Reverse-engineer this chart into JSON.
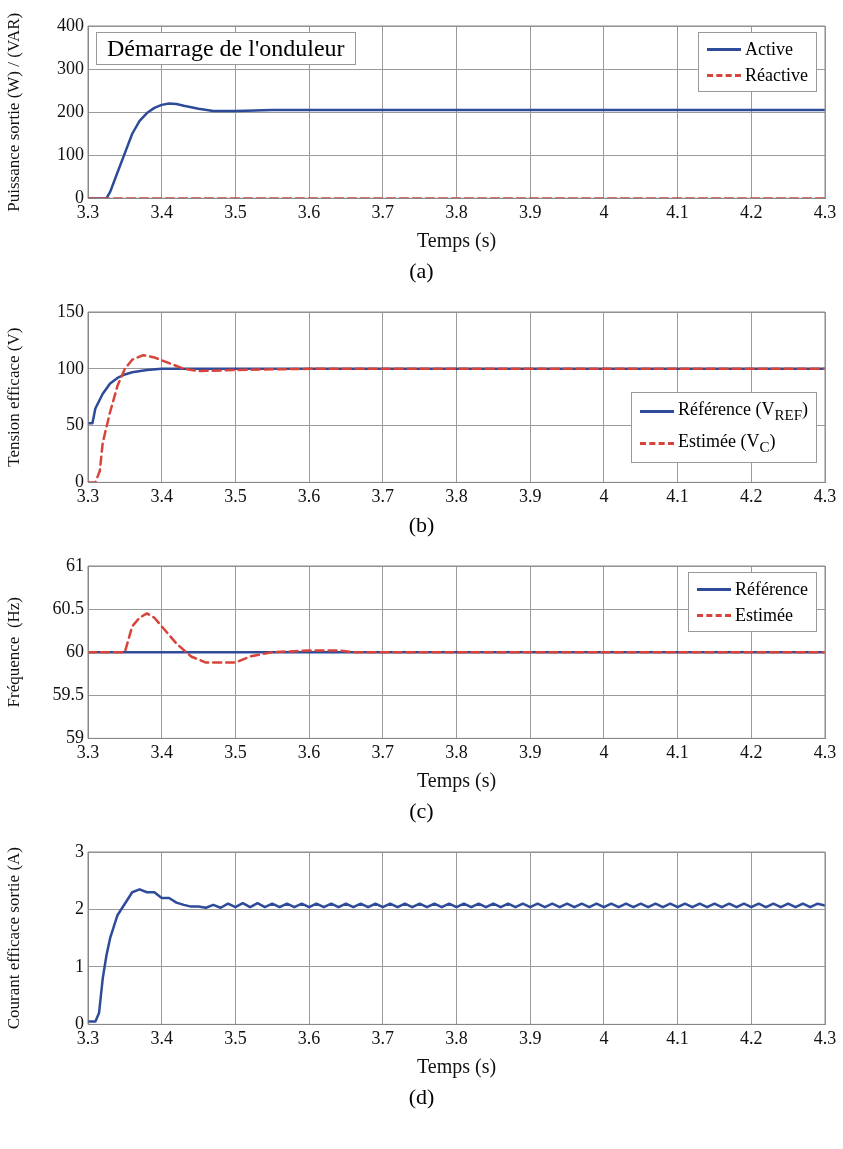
{
  "chart_data": [
    {
      "type": "line",
      "ylabel": "Puissance sortie (W) / (VAR)",
      "xlabel": "Temps (s)",
      "annotations": [
        "Démarrage de l'onduleur",
        "(a)"
      ],
      "xlim": [
        3.3,
        4.3
      ],
      "xticks": [
        3.3,
        3.4,
        3.5,
        3.6,
        3.7,
        3.8,
        3.9,
        4,
        4.1,
        4.2,
        4.3
      ],
      "ylim": [
        0,
        400
      ],
      "yticks": [
        0,
        100,
        200,
        300,
        400
      ],
      "grid": true,
      "legend": "top right",
      "series": [
        {
          "name": "Active",
          "color": "#2e4b9a",
          "line_style": "solid",
          "x": [
            3.3,
            3.325,
            3.33,
            3.34,
            3.35,
            3.36,
            3.37,
            3.38,
            3.39,
            3.4,
            3.41,
            3.42,
            3.43,
            3.45,
            3.47,
            3.5,
            3.55,
            3.6,
            3.7,
            3.8,
            3.9,
            4,
            4.1,
            4.2,
            4.3
          ],
          "values": [
            0,
            0,
            15,
            60,
            105,
            150,
            180,
            198,
            210,
            217,
            220,
            219,
            215,
            208,
            203,
            203,
            205,
            205,
            205,
            205,
            205,
            205,
            205,
            205,
            205
          ]
        },
        {
          "name": "Réactive",
          "color": "#d9443a",
          "line_style": "dashed",
          "x": [
            3.3,
            4.3
          ],
          "values": [
            0,
            0
          ]
        }
      ]
    },
    {
      "type": "line",
      "ylabel": "Tension efficace (V)",
      "annotations": [
        "(b)"
      ],
      "xlim": [
        3.3,
        4.3
      ],
      "xticks": [
        3.3,
        3.4,
        3.5,
        3.6,
        3.7,
        3.8,
        3.9,
        4,
        4.1,
        4.2,
        4.3
      ],
      "ylim": [
        0,
        150
      ],
      "yticks": [
        0,
        50,
        100,
        150
      ],
      "grid": true,
      "legend": "right",
      "series": [
        {
          "name": "Référence (V$_{REF}$)",
          "color": "#2e4b9a",
          "line_style": "solid",
          "x": [
            3.3,
            3.306,
            3.31,
            3.32,
            3.33,
            3.34,
            3.35,
            3.36,
            3.38,
            3.4,
            3.45,
            3.6,
            4.3
          ],
          "values": [
            52,
            52,
            65,
            78,
            87,
            92,
            95,
            97,
            99,
            100,
            100,
            100,
            100
          ]
        },
        {
          "name": "Estimée (V$_{C}$)",
          "color": "#d9443a",
          "line_style": "dashed",
          "x": [
            3.3,
            3.31,
            3.316,
            3.32,
            3.33,
            3.34,
            3.35,
            3.36,
            3.375,
            3.39,
            3.41,
            3.43,
            3.45,
            3.5,
            3.6,
            4.3
          ],
          "values": [
            0,
            0,
            10,
            35,
            62,
            85,
            100,
            108,
            112,
            110,
            105,
            100,
            98,
            99,
            100,
            100
          ]
        }
      ]
    },
    {
      "type": "line",
      "ylabel": "Fréquence  (Hz)",
      "xlabel": "Temps (s)",
      "annotations": [
        "(c)"
      ],
      "xlim": [
        3.3,
        4.3
      ],
      "xticks": [
        3.3,
        3.4,
        3.5,
        3.6,
        3.7,
        3.8,
        3.9,
        4,
        4.1,
        4.2,
        4.3
      ],
      "ylim": [
        59,
        61
      ],
      "yticks": [
        59,
        59.5,
        60,
        60.5,
        61
      ],
      "grid": true,
      "legend": "top right",
      "series": [
        {
          "name": "Référence",
          "color": "#2e4b9a",
          "line_style": "solid",
          "x": [
            3.3,
            4.3
          ],
          "values": [
            60,
            60
          ]
        },
        {
          "name": "Estimée",
          "color": "#d9443a",
          "line_style": "dashed",
          "x": [
            3.3,
            3.35,
            3.36,
            3.37,
            3.38,
            3.39,
            3.4,
            3.42,
            3.44,
            3.46,
            3.5,
            3.52,
            3.55,
            3.6,
            3.64,
            3.66,
            4.3
          ],
          "values": [
            60,
            60,
            60.3,
            60.4,
            60.45,
            60.4,
            60.3,
            60.1,
            59.95,
            59.88,
            59.88,
            59.95,
            60,
            60.02,
            60.02,
            60,
            60
          ]
        }
      ]
    },
    {
      "type": "line",
      "ylabel": "Courant efficace sortie (A)",
      "xlabel": "Temps (s)",
      "annotations": [
        "(d)"
      ],
      "xlim": [
        3.3,
        4.3
      ],
      "xticks": [
        3.3,
        3.4,
        3.5,
        3.6,
        3.7,
        3.8,
        3.9,
        4,
        4.1,
        4.2,
        4.3
      ],
      "ylim": [
        0,
        3
      ],
      "yticks": [
        0,
        1,
        2,
        3
      ],
      "grid": true,
      "series": [
        {
          "color": "#2e4b9a",
          "line_style": "solid",
          "x": [
            3.3,
            3.31,
            3.315,
            3.32,
            3.325,
            3.33,
            3.34,
            3.35,
            3.36,
            3.37,
            3.38,
            3.39,
            3.4,
            3.41,
            3.42,
            3.43,
            3.44,
            3.45,
            3.46,
            3.47,
            3.48,
            3.49,
            3.5,
            3.51,
            3.52,
            3.53,
            3.54,
            3.55,
            3.56,
            3.57,
            3.58,
            3.59,
            3.6,
            3.61,
            3.62,
            3.63,
            3.64,
            3.65,
            3.66,
            3.67,
            3.68,
            3.69,
            3.7,
            3.71,
            3.72,
            3.73,
            3.74,
            3.75,
            3.76,
            3.77,
            3.78,
            3.79,
            3.8,
            3.81,
            3.82,
            3.83,
            3.84,
            3.85,
            3.86,
            3.87,
            3.88,
            3.89,
            3.9,
            3.91,
            3.92,
            3.93,
            3.94,
            3.95,
            3.96,
            3.97,
            3.98,
            3.99,
            4,
            4.01,
            4.02,
            4.03,
            4.04,
            4.05,
            4.06,
            4.07,
            4.08,
            4.09,
            4.1,
            4.11,
            4.12,
            4.13,
            4.14,
            4.15,
            4.16,
            4.17,
            4.18,
            4.19,
            4.2,
            4.21,
            4.22,
            4.23,
            4.24,
            4.25,
            4.26,
            4.27,
            4.28,
            4.29,
            4.3
          ],
          "values": [
            0.05,
            0.05,
            0.2,
            0.8,
            1.2,
            1.5,
            1.9,
            2.1,
            2.3,
            2.35,
            2.3,
            2.3,
            2.2,
            2.2,
            2.12,
            2.08,
            2.05,
            2.05,
            2.03,
            2.08,
            2.03,
            2.1,
            2.04,
            2.11,
            2.04,
            2.11,
            2.04,
            2.1,
            2.04,
            2.1,
            2.04,
            2.1,
            2.04,
            2.1,
            2.04,
            2.1,
            2.04,
            2.1,
            2.04,
            2.1,
            2.04,
            2.1,
            2.04,
            2.1,
            2.04,
            2.1,
            2.04,
            2.1,
            2.04,
            2.1,
            2.04,
            2.1,
            2.04,
            2.1,
            2.04,
            2.1,
            2.04,
            2.1,
            2.04,
            2.1,
            2.04,
            2.1,
            2.04,
            2.1,
            2.04,
            2.1,
            2.04,
            2.1,
            2.04,
            2.1,
            2.04,
            2.1,
            2.04,
            2.1,
            2.04,
            2.1,
            2.04,
            2.1,
            2.04,
            2.1,
            2.04,
            2.1,
            2.04,
            2.1,
            2.04,
            2.1,
            2.04,
            2.1,
            2.04,
            2.1,
            2.04,
            2.1,
            2.04,
            2.1,
            2.04,
            2.1,
            2.04,
            2.1,
            2.04,
            2.1,
            2.04,
            2.1,
            2.07
          ]
        }
      ]
    }
  ]
}
